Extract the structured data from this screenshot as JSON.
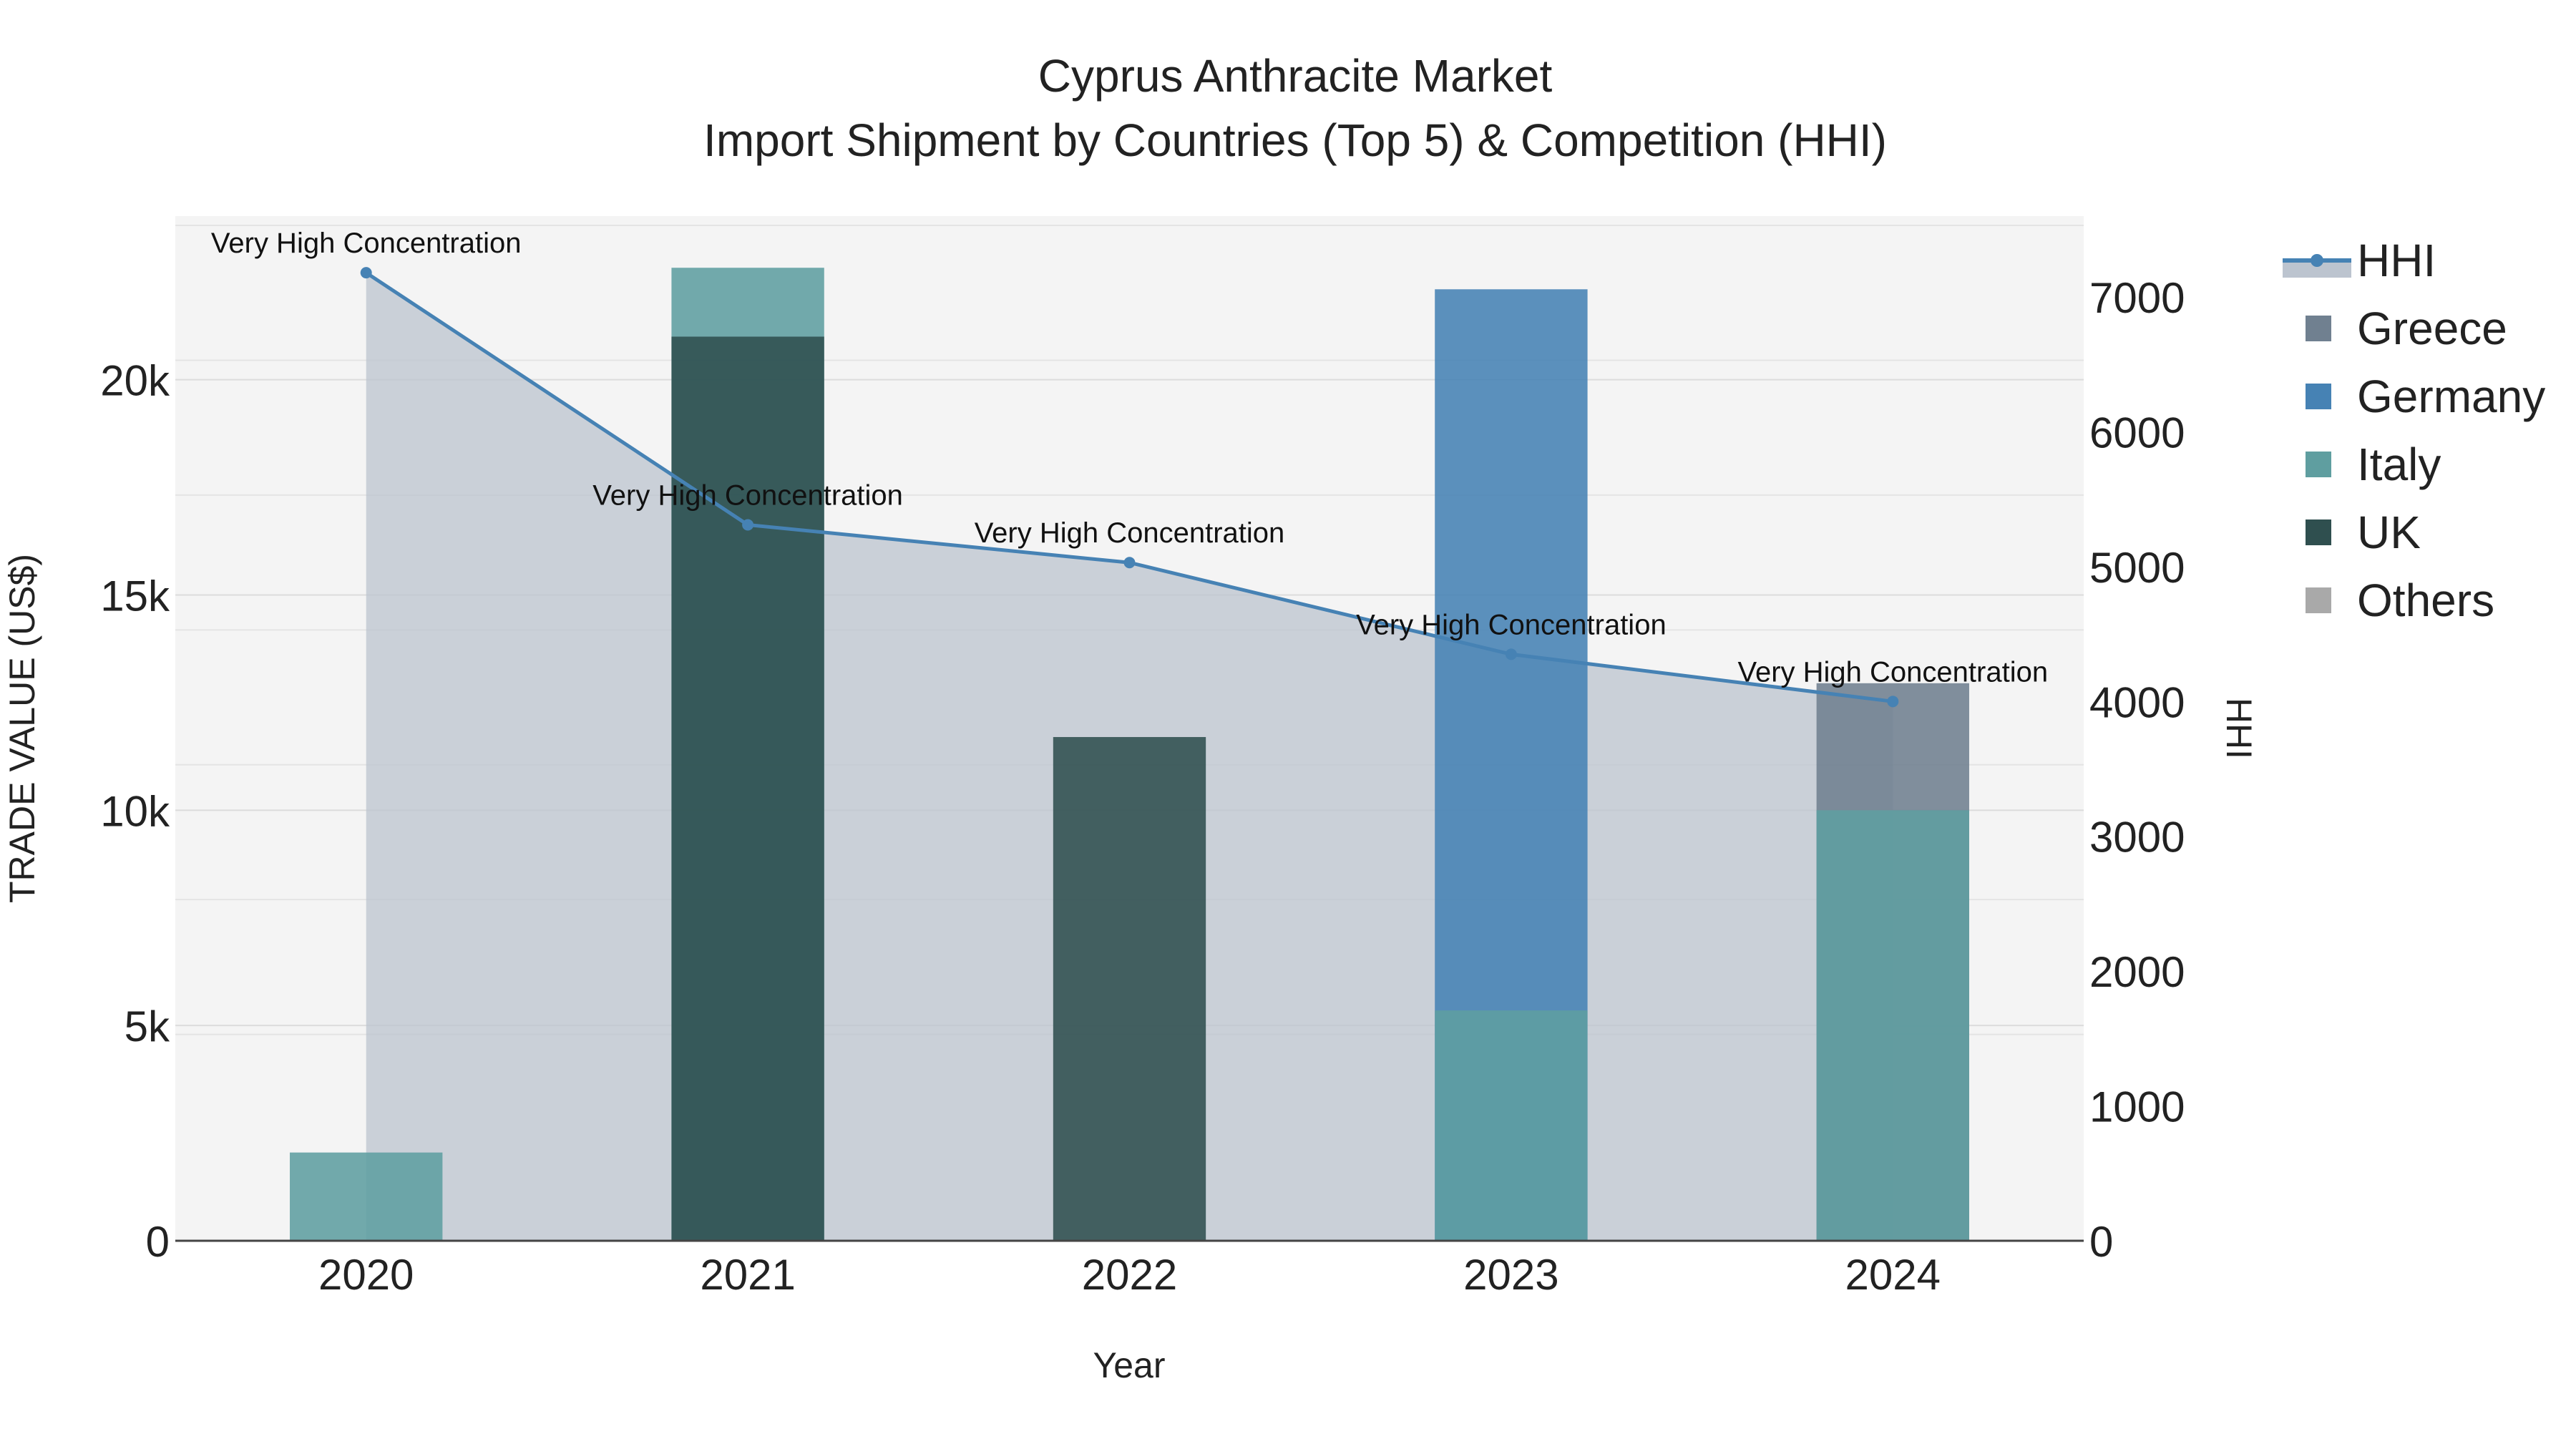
{
  "chart_data": {
    "type": "bar",
    "title": "Cyprus Anthracite Market",
    "subtitle": "Import Shipment by Countries (Top 5) & Competition (HHI)",
    "xlabel": "Year",
    "ylabel": "TRADE VALUE (US$)",
    "y2label": "HHI",
    "categories": [
      "2020",
      "2021",
      "2022",
      "2023",
      "2024"
    ],
    "ylim": [
      0,
      23800
    ],
    "y2lim": [
      0,
      7600
    ],
    "y_ticks": [
      {
        "value": 0,
        "label": "0"
      },
      {
        "value": 5000,
        "label": "5k"
      },
      {
        "value": 10000,
        "label": "10k"
      },
      {
        "value": 15000,
        "label": "15k"
      },
      {
        "value": 20000,
        "label": "20k"
      }
    ],
    "y2_ticks": [
      {
        "value": 0,
        "label": "0"
      },
      {
        "value": 1000,
        "label": "1000"
      },
      {
        "value": 2000,
        "label": "2000"
      },
      {
        "value": 3000,
        "label": "3000"
      },
      {
        "value": 4000,
        "label": "4000"
      },
      {
        "value": 5000,
        "label": "5000"
      },
      {
        "value": 6000,
        "label": "6000"
      },
      {
        "value": 7000,
        "label": "7000"
      }
    ],
    "bar_mode": "overlay",
    "series": [
      {
        "name": "Greece",
        "color": "#708090",
        "values": [
          0,
          0,
          0,
          0,
          12950
        ]
      },
      {
        "name": "Germany",
        "color": "#4682b4",
        "values": [
          0,
          0,
          0,
          22100,
          0
        ]
      },
      {
        "name": "Italy",
        "color": "#5f9ea0",
        "values": [
          2050,
          22600,
          0,
          5350,
          10000
        ]
      },
      {
        "name": "UK",
        "color": "#2f4f4f",
        "values": [
          0,
          21000,
          11700,
          0,
          0
        ]
      },
      {
        "name": "Others",
        "color": "#a9a9a9",
        "values": [
          0,
          0,
          0,
          0,
          0
        ]
      }
    ],
    "hhi": {
      "name": "HHI",
      "color": "#4682b4",
      "fill": "#bcc4cf",
      "values": [
        7180,
        5310,
        5030,
        4350,
        4000
      ],
      "annotations": [
        "Very High Concentration",
        "Very High Concentration",
        "Very High Concentration",
        "Very High Concentration",
        "Very High Concentration"
      ]
    },
    "legend": [
      "HHI",
      "Greece",
      "Germany",
      "Italy",
      "UK",
      "Others"
    ],
    "legend_position": "right",
    "grid": true
  }
}
